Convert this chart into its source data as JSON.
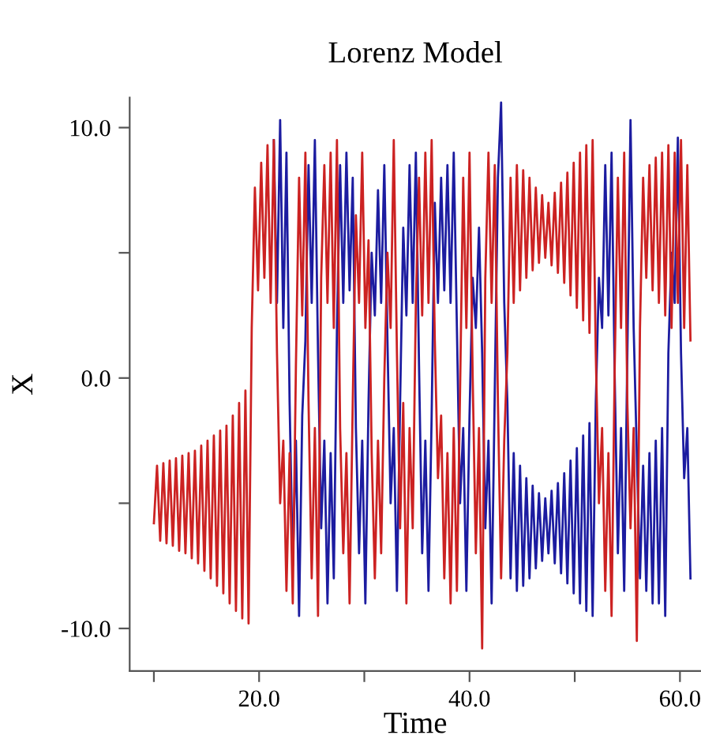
{
  "chart_data": {
    "type": "line",
    "title": "Lorenz Model",
    "xlabel": "Time",
    "ylabel": "X",
    "xlim": [
      7.7,
      62
    ],
    "ylim": [
      -11.7,
      11.2
    ],
    "xticks": [
      {
        "value": 10,
        "label": null
      },
      {
        "value": 20,
        "label": "20.0"
      },
      {
        "value": 30,
        "label": null
      },
      {
        "value": 40,
        "label": "40.0"
      },
      {
        "value": 50,
        "label": null
      },
      {
        "value": 60,
        "label": "60.0"
      }
    ],
    "yticks": [
      {
        "value": -10,
        "label": "-10.0"
      },
      {
        "value": -5,
        "label": null
      },
      {
        "value": 0,
        "label": "0.0"
      },
      {
        "value": 5,
        "label": null
      },
      {
        "value": 10,
        "label": "10.0"
      }
    ],
    "grid": false,
    "legend": false,
    "marker": "none",
    "line_style": "solid",
    "series": [
      {
        "color": "#cc2222",
        "x": [
          10.0,
          10.3,
          10.6,
          10.9,
          11.2,
          11.5,
          11.8,
          12.1,
          12.4,
          12.7,
          13.0,
          13.3,
          13.6,
          13.9,
          14.2,
          14.5,
          14.8,
          15.1,
          15.4,
          15.7,
          16.0,
          16.3,
          16.6,
          16.9,
          17.2,
          17.5,
          17.8,
          18.1,
          18.4,
          18.7,
          19.0,
          19.3,
          19.6,
          19.9,
          20.2,
          20.5,
          20.8,
          21.1,
          21.4,
          21.7,
          22.0,
          22.3,
          22.6,
          22.9,
          23.2,
          23.5,
          23.8,
          24.1,
          24.4,
          24.7,
          25.0,
          25.3,
          25.6,
          25.9,
          26.2,
          26.5,
          26.8,
          27.1,
          27.4,
          27.7,
          28.0,
          28.3,
          28.6,
          28.9,
          29.2,
          29.5,
          29.8,
          30.1,
          30.4,
          30.7,
          31.0,
          31.3,
          31.6,
          31.9,
          32.2,
          32.5,
          32.8,
          33.1,
          33.4,
          33.7,
          34.0,
          34.3,
          34.6,
          34.9,
          35.2,
          35.5,
          35.8,
          36.1,
          36.4,
          36.7,
          37.0,
          37.3,
          37.6,
          37.9,
          38.2,
          38.5,
          38.8,
          39.1,
          39.4,
          39.7,
          40.0,
          40.3,
          40.6,
          40.9,
          41.2,
          41.5,
          41.8,
          42.1,
          42.4,
          42.7,
          43.0,
          43.3,
          43.6,
          43.9,
          44.2,
          44.5,
          44.8,
          45.1,
          45.4,
          45.7,
          46.0,
          46.3,
          46.6,
          46.9,
          47.2,
          47.5,
          47.8,
          48.1,
          48.4,
          48.7,
          49.0,
          49.3,
          49.6,
          49.9,
          50.2,
          50.5,
          50.8,
          51.1,
          51.4,
          51.7,
          52.0,
          52.3,
          52.6,
          52.9,
          53.2,
          53.5,
          53.8,
          54.1,
          54.4,
          54.7,
          55.0,
          55.3,
          55.6,
          55.9,
          56.2,
          56.5,
          56.8,
          57.1,
          57.4,
          57.7,
          58.0,
          58.3,
          58.6,
          58.9,
          59.2,
          59.5,
          59.8,
          60.1,
          60.4,
          60.7,
          61.0
        ],
        "values": [
          -5.8,
          -3.5,
          -6.5,
          -3.4,
          -6.6,
          -3.3,
          -6.7,
          -3.2,
          -6.9,
          -3.1,
          -7.0,
          -3.0,
          -7.2,
          -2.9,
          -7.4,
          -2.7,
          -7.7,
          -2.5,
          -8.0,
          -2.3,
          -8.3,
          -2.1,
          -8.6,
          -1.9,
          -9.0,
          -1.5,
          -9.3,
          -1.0,
          -9.6,
          -0.5,
          -9.8,
          2.0,
          7.6,
          3.5,
          8.6,
          4.0,
          9.3,
          3.0,
          9.5,
          1.0,
          -5.0,
          -2.5,
          -8.5,
          -3.0,
          -9.0,
          0.5,
          8.0,
          2.5,
          9.0,
          -1.0,
          -8.0,
          -2.0,
          -9.5,
          4.0,
          8.5,
          3.0,
          9.0,
          2.0,
          9.5,
          -2.0,
          -7.0,
          -3.0,
          -9.0,
          -1.0,
          6.5,
          3.0,
          9.0,
          2.0,
          5.5,
          -3.0,
          -8.0,
          -2.5,
          -7.0,
          0.0,
          5.0,
          2.0,
          9.5,
          1.0,
          -6.0,
          -1.0,
          -9.0,
          -2.0,
          -6.0,
          3.0,
          8.0,
          2.5,
          9.0,
          3.0,
          9.5,
          1.5,
          -4.0,
          -1.5,
          -8.0,
          -3.0,
          -9.0,
          -2.0,
          -8.5,
          -0.5,
          8.0,
          2.0,
          9.0,
          0.0,
          -7.0,
          -2.0,
          -10.8,
          4.0,
          9.0,
          3.0,
          8.5,
          -1.0,
          -8.0,
          -2.5,
          1.0,
          8.0,
          3.0,
          8.5,
          3.5,
          8.3,
          4.0,
          8.0,
          4.3,
          7.6,
          4.6,
          7.3,
          4.8,
          7.0,
          4.5,
          7.4,
          4.2,
          7.8,
          3.8,
          8.2,
          3.3,
          8.6,
          2.8,
          9.0,
          2.3,
          9.3,
          1.8,
          9.5,
          1.0,
          -5.0,
          -2.0,
          -8.5,
          -3.0,
          -9.5,
          0.5,
          8.0,
          2.0,
          9.0,
          -1.0,
          -6.0,
          -2.0,
          -10.5,
          2.0,
          8.0,
          4.0,
          8.5,
          3.5,
          8.8,
          3.0,
          9.0,
          2.5,
          9.3,
          2.0,
          9.0,
          3.0,
          9.5,
          2.0,
          8.5,
          1.5
        ]
      },
      {
        "color": "#1c1ca0",
        "x": [
          21.4,
          21.7,
          22.0,
          22.3,
          22.6,
          22.9,
          23.2,
          23.5,
          23.8,
          24.1,
          24.4,
          24.7,
          25.0,
          25.3,
          25.6,
          25.9,
          26.2,
          26.5,
          26.8,
          27.1,
          27.4,
          27.7,
          28.0,
          28.3,
          28.6,
          28.9,
          29.2,
          29.5,
          29.8,
          30.1,
          30.4,
          30.7,
          31.0,
          31.3,
          31.6,
          31.9,
          32.2,
          32.5,
          32.8,
          33.1,
          33.4,
          33.7,
          34.0,
          34.3,
          34.6,
          34.9,
          35.2,
          35.5,
          35.8,
          36.1,
          36.4,
          36.7,
          37.0,
          37.3,
          37.6,
          37.9,
          38.2,
          38.5,
          38.8,
          39.1,
          39.4,
          39.7,
          40.0,
          40.3,
          40.6,
          40.9,
          41.2,
          41.5,
          41.8,
          42.1,
          42.4,
          42.7,
          43.0,
          43.3,
          43.6,
          43.9,
          44.2,
          44.5,
          44.8,
          45.1,
          45.4,
          45.7,
          46.0,
          46.3,
          46.6,
          46.9,
          47.2,
          47.5,
          47.8,
          48.1,
          48.4,
          48.7,
          49.0,
          49.3,
          49.6,
          49.9,
          50.2,
          50.5,
          50.8,
          51.1,
          51.4,
          51.7,
          52.0,
          52.3,
          52.6,
          52.9,
          53.2,
          53.5,
          53.8,
          54.1,
          54.4,
          54.7,
          55.0,
          55.3,
          55.6,
          55.9,
          56.2,
          56.5,
          56.8,
          57.1,
          57.4,
          57.7,
          58.0,
          58.3,
          58.6,
          58.9,
          59.2,
          59.5,
          59.8,
          60.1,
          60.4,
          60.7,
          61.0
        ],
        "values": [
          9.5,
          3.0,
          10.3,
          2.0,
          9.0,
          -1.0,
          -7.5,
          -2.5,
          -9.5,
          -1.5,
          1.5,
          8.5,
          3.0,
          9.5,
          1.0,
          -6.0,
          -2.5,
          -9.0,
          -3.0,
          -8.0,
          2.0,
          8.5,
          3.0,
          9.0,
          3.5,
          8.0,
          -2.0,
          -7.0,
          -2.5,
          -9.0,
          -1.0,
          5.0,
          2.5,
          7.5,
          3.0,
          8.5,
          1.5,
          -5.0,
          -2.0,
          -8.5,
          -1.0,
          6.0,
          2.5,
          8.5,
          3.0,
          9.0,
          0.5,
          -7.0,
          -2.5,
          -8.5,
          -1.5,
          7.0,
          3.0,
          8.0,
          3.5,
          8.5,
          3.0,
          9.0,
          2.0,
          -5.0,
          -2.0,
          -8.5,
          -1.5,
          4.0,
          2.0,
          6.0,
          1.0,
          -6.0,
          -2.5,
          -9.0,
          -0.5,
          8.0,
          11.0,
          3.0,
          -1.0,
          -8.0,
          -3.0,
          -8.5,
          -3.5,
          -8.3,
          -4.0,
          -8.0,
          -4.3,
          -7.6,
          -4.6,
          -7.3,
          -4.8,
          -7.0,
          -4.5,
          -7.4,
          -4.2,
          -7.8,
          -3.8,
          -8.2,
          -3.3,
          -8.6,
          -2.8,
          -9.0,
          -2.3,
          -9.3,
          -1.8,
          -9.5,
          -1.0,
          4.0,
          2.0,
          8.5,
          2.5,
          9.0,
          0.0,
          -7.0,
          -2.0,
          -8.5,
          1.0,
          10.3,
          2.0,
          -3.0,
          -8.0,
          -3.5,
          -8.5,
          -3.0,
          -9.0,
          -2.5,
          -9.0,
          -2.0,
          -9.5,
          1.0,
          5.0,
          3.0,
          9.6,
          1.0,
          -4.0,
          -2.0,
          -8.0
        ]
      }
    ]
  }
}
